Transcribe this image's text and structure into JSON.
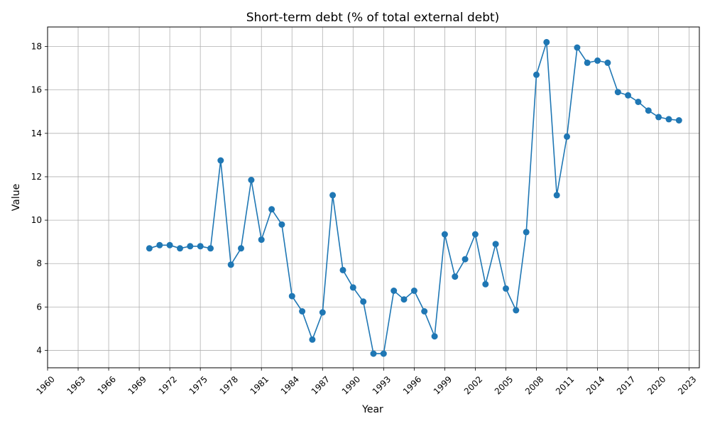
{
  "chart_data": {
    "type": "line",
    "title": "Short-term debt (% of total external debt)",
    "xlabel": "Year",
    "ylabel": "Value",
    "xlim": [
      1960,
      2024
    ],
    "ylim": [
      3.2,
      18.9
    ],
    "x_ticks": [
      1960,
      1963,
      1966,
      1969,
      1972,
      1975,
      1978,
      1981,
      1984,
      1987,
      1990,
      1993,
      1996,
      1999,
      2002,
      2005,
      2008,
      2011,
      2014,
      2017,
      2020,
      2023
    ],
    "y_ticks": [
      4,
      6,
      8,
      10,
      12,
      14,
      16,
      18
    ],
    "grid": true,
    "line_color": "#1f77b4",
    "series": [
      {
        "x": [
          1970,
          1971,
          1972,
          1973,
          1974,
          1975,
          1976,
          1977,
          1978,
          1979,
          1980,
          1981,
          1982,
          1983,
          1984,
          1985,
          1986,
          1987,
          1988,
          1989,
          1990,
          1991,
          1992,
          1993,
          1994,
          1995,
          1996,
          1997,
          1998,
          1999,
          2000,
          2001,
          2002,
          2003,
          2004,
          2005,
          2006,
          2007,
          2008,
          2009,
          2010,
          2011,
          2012,
          2013,
          2014,
          2015,
          2016,
          2017,
          2018,
          2019,
          2020,
          2021,
          2022
        ],
        "values": [
          8.7,
          8.85,
          8.85,
          8.7,
          8.8,
          8.8,
          8.7,
          12.75,
          7.95,
          8.7,
          11.85,
          9.1,
          10.5,
          9.8,
          6.5,
          5.8,
          4.5,
          5.75,
          11.15,
          7.7,
          6.9,
          6.25,
          3.85,
          3.85,
          6.75,
          6.35,
          6.75,
          5.8,
          4.65,
          9.35,
          7.4,
          8.2,
          9.35,
          7.05,
          8.9,
          6.85,
          5.85,
          9.45,
          16.7,
          18.2,
          11.15,
          13.85,
          17.95,
          17.25,
          17.35,
          17.25,
          15.9,
          15.75,
          15.45,
          15.05,
          14.75,
          14.65,
          14.6
        ]
      }
    ]
  }
}
